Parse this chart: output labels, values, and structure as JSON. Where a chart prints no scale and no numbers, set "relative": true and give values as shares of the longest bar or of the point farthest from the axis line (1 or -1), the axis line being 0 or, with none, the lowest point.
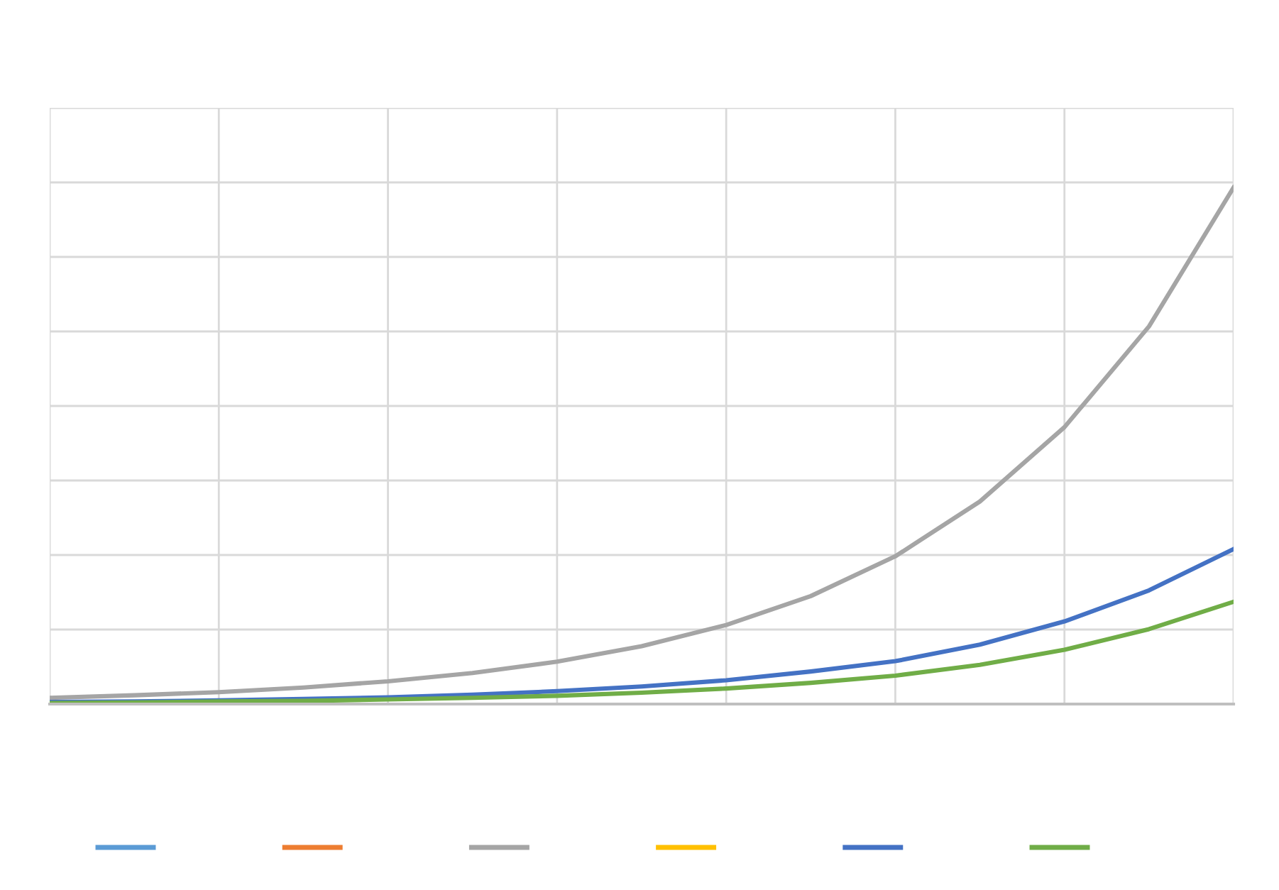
{
  "chart_data": {
    "type": "line",
    "relative": true,
    "grid": true,
    "tick_labels": false,
    "categories": [
      null,
      null,
      null,
      null,
      null,
      null,
      null,
      null,
      null,
      null,
      null,
      null,
      null,
      null,
      null
    ],
    "series": [
      {
        "color": "#5b9bd5",
        "values": [
          null,
          null,
          null,
          null,
          null,
          null,
          null,
          null,
          null,
          null,
          null,
          null,
          null,
          null,
          null
        ]
      },
      {
        "color": "#ed7d31",
        "values": [
          null,
          null,
          null,
          null,
          null,
          null,
          null,
          null,
          null,
          null,
          null,
          null,
          null,
          null,
          null
        ]
      },
      {
        "color": "#a5a5a5",
        "values": [
          0.012,
          0.017,
          0.023,
          0.032,
          0.044,
          0.06,
          0.082,
          0.112,
          0.153,
          0.209,
          0.286,
          0.392,
          0.536,
          0.731,
          1
        ]
      },
      {
        "color": "#ffc000",
        "values": [
          null,
          null,
          null,
          null,
          null,
          null,
          null,
          null,
          null,
          null,
          null,
          null,
          null,
          null,
          null
        ]
      },
      {
        "color": "#4472c4",
        "values": [
          0.004,
          0.005,
          0.007,
          0.01,
          0.013,
          0.018,
          0.025,
          0.034,
          0.046,
          0.063,
          0.083,
          0.115,
          0.16,
          0.22,
          0.3
        ]
      },
      {
        "color": "#70ad47",
        "values": [
          0.002,
          0.003,
          0.005,
          0.006,
          0.009,
          0.012,
          0.016,
          0.022,
          0.03,
          0.041,
          0.055,
          0.076,
          0.105,
          0.145,
          0.198
        ]
      }
    ]
  }
}
